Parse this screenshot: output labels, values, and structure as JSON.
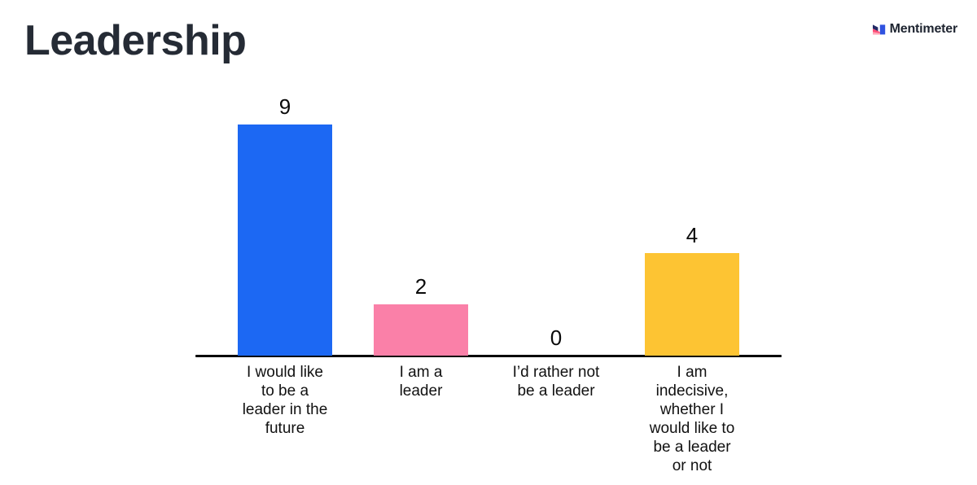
{
  "header": {
    "title": "Leadership",
    "brand": "Mentimeter",
    "brand_colors": {
      "navy": "#232A66",
      "blue": "#2F52E0",
      "pink": "#FF4E78",
      "light_pink": "#FFA7B8",
      "text": "#1E2430"
    }
  },
  "chart_data": {
    "type": "bar",
    "title": "Leadership",
    "xlabel": "",
    "ylabel": "",
    "categories": [
      "I would like to be a leader in the future",
      "I am a leader",
      "I’d rather not be a leader",
      "I am indecisive, whether I would like to be a leader or not"
    ],
    "category_lines": [
      [
        "I would like",
        "to be a",
        "leader in the",
        "future"
      ],
      [
        "I am a",
        "leader"
      ],
      [
        "I’d rather not",
        "be a leader"
      ],
      [
        "I am",
        "indecisive,",
        "whether I",
        "would like to",
        "be a leader",
        "or not"
      ]
    ],
    "values": [
      9,
      2,
      0,
      4
    ],
    "bar_colors": [
      "#1C68F3",
      "#FA80A8",
      null,
      "#FDC433"
    ],
    "ylim": [
      0,
      9
    ],
    "grid": false,
    "legend": false,
    "value_labels_shown": true,
    "value_label_color": "#0A0A0A",
    "axis_color": "#0A0A0A",
    "label_color": "#111111"
  }
}
